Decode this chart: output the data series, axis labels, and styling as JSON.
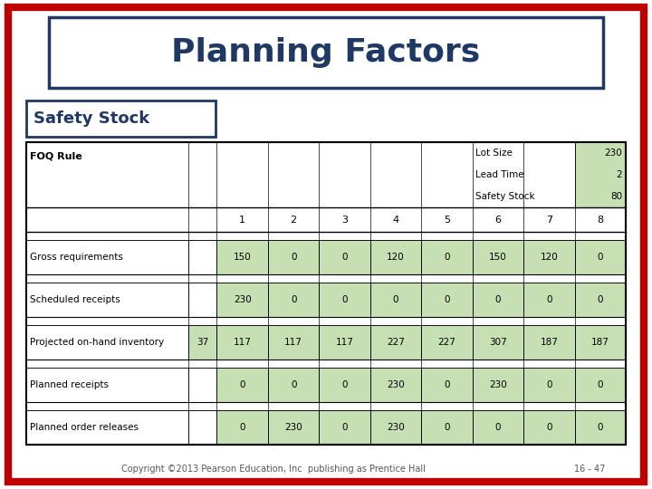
{
  "title": "Planning Factors",
  "subtitle": "Safety Stock",
  "foq_label": "FOQ Rule",
  "lot_size_label": "Lot Size",
  "lead_time_label": "Lead Time",
  "safety_stock_label": "Safety Stock",
  "lot_size_value": "230",
  "lead_time_value": "2",
  "safety_stock_value": "80",
  "period_headers": [
    "1",
    "2",
    "3",
    "4",
    "5",
    "6",
    "7",
    "8"
  ],
  "rows": [
    {
      "label": "Gross requirements",
      "col0": "",
      "data": [
        "150",
        "0",
        "0",
        "120",
        "0",
        "150",
        "120",
        "0"
      ]
    },
    {
      "label": "Scheduled receipts",
      "col0": "",
      "data": [
        "230",
        "0",
        "0",
        "0",
        "0",
        "0",
        "0",
        "0"
      ]
    },
    {
      "label": "Projected on-hand inventory",
      "col0": "37",
      "data": [
        "117",
        "117",
        "117",
        "227",
        "227",
        "307",
        "187",
        "187"
      ]
    },
    {
      "label": "Planned receipts",
      "col0": "",
      "data": [
        "0",
        "0",
        "0",
        "230",
        "0",
        "230",
        "0",
        "0"
      ]
    },
    {
      "label": "Planned order releases",
      "col0": "",
      "data": [
        "0",
        "230",
        "0",
        "230",
        "0",
        "0",
        "0",
        "0"
      ]
    }
  ],
  "title_color": "#1F3864",
  "title_border_color": "#1F3864",
  "subtitle_border_color": "#1F3864",
  "table_border_color": "#000000",
  "green_fill": "#C6E0B4",
  "copyright_text": "Copyright ©2013 Pearson Education, Inc  publishing as Prentice Hall",
  "page_text": "16 - 47",
  "bg_color": "#FFFFFF",
  "outer_border_color": "#C00000"
}
